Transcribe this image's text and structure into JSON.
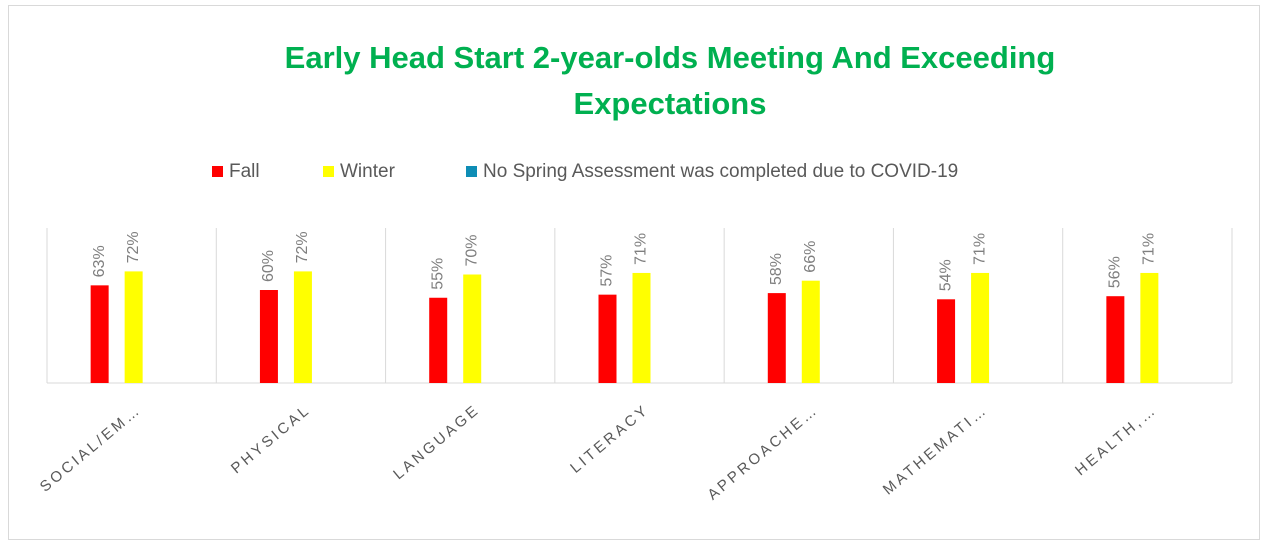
{
  "chart_data": {
    "type": "bar",
    "title": [
      "Early Head Start 2-year-olds Meeting And Exceeding",
      "Expectations"
    ],
    "categories": [
      "SOCIAL/EM…",
      "PHYSICAL",
      "LANGUAGE",
      "LITERACY",
      "APPROACHE…",
      "MATHEMATI…",
      "HEALTH,…"
    ],
    "series": [
      {
        "name": "Fall",
        "color": "#ff0000",
        "values": [
          63,
          60,
          55,
          57,
          58,
          54,
          56
        ],
        "value_labels": [
          "63%",
          "60%",
          "55%",
          "57%",
          "58%",
          "54%",
          "56%"
        ]
      },
      {
        "name": "Winter",
        "color": "#ffff00",
        "values": [
          72,
          72,
          70,
          71,
          66,
          71,
          71
        ],
        "value_labels": [
          "72%",
          "72%",
          "70%",
          "71%",
          "66%",
          "71%",
          "71%"
        ]
      },
      {
        "name": "No Spring Assessment was completed due to COVID-19",
        "color": "#0e8db5",
        "values": [
          null,
          null,
          null,
          null,
          null,
          null,
          null
        ]
      }
    ],
    "ylim": [
      0,
      100
    ],
    "legend": "top"
  }
}
